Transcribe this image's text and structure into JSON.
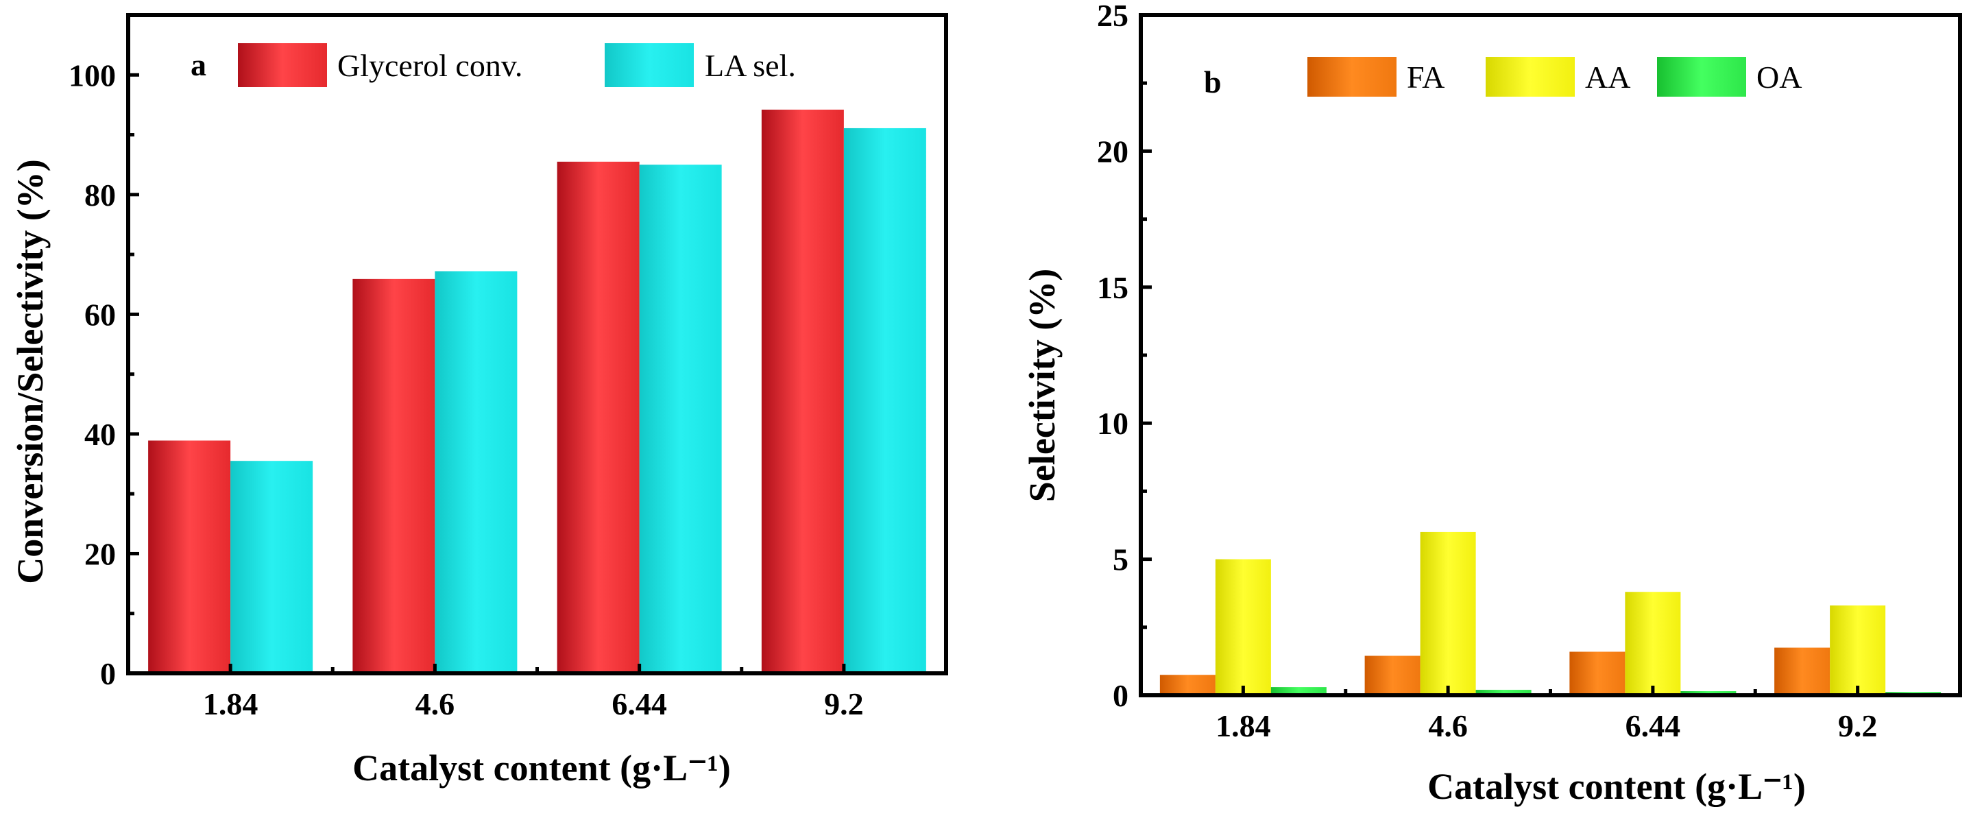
{
  "colors": {
    "glycerol": "#e62a2e",
    "la": "#19e3e3",
    "fa": "#f07810",
    "aa": "#f2f010",
    "oa": "#2ee64a"
  },
  "chart_data": [
    {
      "panel": "a",
      "type": "bar",
      "categories": [
        "1.84",
        "4.6",
        "6.44",
        "9.2"
      ],
      "series": [
        {
          "name": "Glycerol conv.",
          "color_key": "glycerol",
          "values": [
            38.9,
            65.9,
            85.5,
            94.2
          ]
        },
        {
          "name": "LA sel.",
          "color_key": "la",
          "values": [
            35.5,
            67.2,
            85.0,
            91.1
          ]
        }
      ],
      "xlabel": "Catalyst content (g·L⁻¹)",
      "ylabel": "Conversion/Selectivity (%)",
      "ylim": [
        0,
        110
      ],
      "yticks": [
        "0",
        "20",
        "40",
        "60",
        "80",
        "100"
      ],
      "yticks_values": [
        0,
        20,
        40,
        60,
        80,
        100
      ],
      "legend": "top"
    },
    {
      "panel": "b",
      "type": "bar",
      "categories": [
        "1.84",
        "4.6",
        "6.44",
        "9.2"
      ],
      "series": [
        {
          "name": "FA",
          "color_key": "fa",
          "values": [
            0.75,
            1.45,
            1.6,
            1.75
          ]
        },
        {
          "name": "AA",
          "color_key": "aa",
          "values": [
            5.0,
            6.0,
            3.8,
            3.3
          ]
        },
        {
          "name": "OA",
          "color_key": "oa",
          "values": [
            0.3,
            0.2,
            0.15,
            0.12
          ]
        }
      ],
      "xlabel": "Catalyst content (g·L⁻¹)",
      "ylabel": "Selectivity (%)",
      "ylim": [
        0,
        25
      ],
      "yticks": [
        "0",
        "5",
        "10",
        "15",
        "20",
        "25"
      ],
      "yticks_values": [
        0,
        5,
        10,
        15,
        20,
        25
      ],
      "legend": "top"
    }
  ]
}
